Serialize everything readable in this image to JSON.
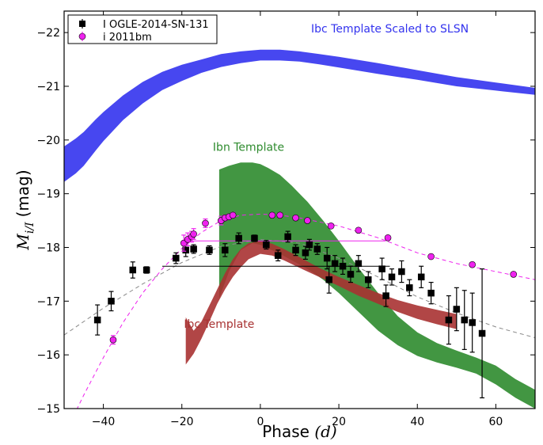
{
  "chart_data": {
    "type": "scatter",
    "title": "",
    "xlabel": "Phase",
    "xlabel_unit": "(d)",
    "ylabel": "M",
    "ylabel_sub": "i/I",
    "ylabel_unit": "(mag)",
    "xlim": [
      -50,
      70
    ],
    "ylim": [
      -15,
      -22.4
    ],
    "y_inverted": true,
    "x_ticks": [
      -40,
      -20,
      0,
      20,
      40,
      60
    ],
    "x_tick_labels": [
      "−40",
      "−20",
      "0",
      "20",
      "40",
      "60"
    ],
    "y_ticks": [
      -15,
      -16,
      -17,
      -18,
      -19,
      -20,
      -21,
      -22
    ],
    "y_tick_labels": [
      "−15",
      "−16",
      "−17",
      "−18",
      "−19",
      "−20",
      "−21",
      "−22"
    ],
    "grid": false,
    "legend_position": "top-left",
    "colors": {
      "ibc_slsn": "#3333ee",
      "ibn": "#2e8b2e",
      "ibc": "#a83232",
      "ogle": "#000000",
      "sn2011bm": "#ee22ee",
      "fit_black": "#888888"
    },
    "series": [
      {
        "name": "I OGLE-2014-SN-131",
        "marker": "square",
        "color": "#000000",
        "x": [
          -41.5,
          -38,
          -32.5,
          -29,
          -21.5,
          -19,
          -17,
          -13,
          -9,
          -5.5,
          -1.5,
          1.5,
          4.5,
          7,
          9,
          11.5,
          12.5,
          14.5,
          17,
          17.5,
          19,
          21,
          23,
          25,
          27.5,
          31,
          32,
          33.5,
          36,
          38,
          41,
          43.5,
          48,
          50,
          52,
          54,
          56.5
        ],
        "y": [
          -16.65,
          -17.0,
          -17.58,
          -17.58,
          -17.8,
          -17.95,
          -17.97,
          -17.95,
          -17.95,
          -18.17,
          -18.17,
          -18.05,
          -17.85,
          -18.2,
          -17.95,
          -17.9,
          -18.05,
          -17.97,
          -17.8,
          -17.4,
          -17.7,
          -17.65,
          -17.5,
          -17.7,
          -17.4,
          -17.6,
          -17.1,
          -17.45,
          -17.55,
          -17.25,
          -17.45,
          -17.15,
          -16.65,
          -16.85,
          -16.65,
          -16.6,
          -16.4
        ],
        "yerr": [
          0.28,
          0.18,
          0.15,
          0.06,
          0.1,
          0.12,
          0.08,
          0.08,
          0.12,
          0.1,
          0.06,
          0.08,
          0.1,
          0.1,
          0.1,
          0.12,
          0.1,
          0.1,
          0.2,
          0.25,
          0.15,
          0.15,
          0.15,
          0.15,
          0.15,
          0.2,
          0.2,
          0.15,
          0.2,
          0.15,
          0.2,
          0.2,
          0.45,
          0.4,
          0.55,
          0.55,
          1.2
        ]
      },
      {
        "name": "i 2011bm",
        "marker": "circle",
        "color": "#ee22ee",
        "x": [
          -37.5,
          -19.5,
          -18.5,
          -17.5,
          -17,
          -14,
          -10,
          -9,
          -8,
          -7,
          3,
          5,
          9,
          12,
          18,
          25,
          32.5,
          43.5,
          54,
          64.5
        ],
        "y": [
          -16.28,
          -18.08,
          -18.15,
          -18.2,
          -18.25,
          -18.45,
          -18.5,
          -18.55,
          -18.57,
          -18.6,
          -18.6,
          -18.6,
          -18.55,
          -18.5,
          -18.4,
          -18.32,
          -18.18,
          -17.83,
          -17.68,
          -17.5
        ],
        "yerr": [
          0.08,
          0.15,
          0.12,
          0.1,
          0.1,
          0.08,
          0.08,
          0.05,
          0.05,
          0.05,
          0.04,
          0.04,
          0.04,
          0.04,
          0.04,
          0.04,
          0.04,
          0.04,
          0.04,
          0.04
        ]
      }
    ],
    "bands": [
      {
        "label": "Ibc Template Scaled to SLSN",
        "color": "#3333ee",
        "x": [
          -50,
          -47,
          -45,
          -42,
          -40,
          -35,
          -30,
          -25,
          -20,
          -15,
          -10,
          -5,
          0,
          5,
          10,
          15,
          20,
          30,
          40,
          50,
          60,
          70
        ],
        "y_bright": [
          -19.88,
          -20.03,
          -20.15,
          -20.38,
          -20.52,
          -20.83,
          -21.08,
          -21.27,
          -21.4,
          -21.5,
          -21.6,
          -21.65,
          -21.68,
          -21.68,
          -21.65,
          -21.6,
          -21.55,
          -21.43,
          -21.3,
          -21.17,
          -21.07,
          -20.97
        ],
        "y_faint": [
          -19.22,
          -19.38,
          -19.52,
          -19.8,
          -19.98,
          -20.37,
          -20.68,
          -20.93,
          -21.1,
          -21.25,
          -21.36,
          -21.43,
          -21.48,
          -21.48,
          -21.46,
          -21.41,
          -21.35,
          -21.23,
          -21.12,
          -21.0,
          -20.92,
          -20.84
        ]
      },
      {
        "label": "Ibn Template",
        "color": "#2e8b2e",
        "x": [
          -10.5,
          -8,
          -5,
          -2,
          0,
          2,
          5,
          8,
          12,
          16,
          20,
          25,
          30,
          35,
          40,
          45,
          50,
          55,
          60,
          65,
          70
        ],
        "y_bright": [
          -19.45,
          -19.52,
          -19.58,
          -19.58,
          -19.55,
          -19.48,
          -19.35,
          -19.15,
          -18.85,
          -18.5,
          -18.12,
          -17.62,
          -17.15,
          -16.72,
          -16.42,
          -16.22,
          -16.08,
          -15.95,
          -15.8,
          -15.55,
          -15.35
        ],
        "y_faint": [
          -17.05,
          -17.55,
          -17.95,
          -18.08,
          -18.05,
          -17.98,
          -17.88,
          -17.76,
          -17.6,
          -17.4,
          -17.15,
          -16.8,
          -16.45,
          -16.18,
          -15.98,
          -15.86,
          -15.76,
          -15.65,
          -15.45,
          -15.2,
          -15.0
        ]
      },
      {
        "label": "Ibc Template",
        "color": "#a83232",
        "x": [
          -19,
          -17,
          -15,
          -13,
          -11,
          -9,
          -7,
          -5,
          -3,
          0,
          3,
          6,
          10,
          15,
          20,
          25,
          30,
          35,
          40,
          45,
          50
        ],
        "y_bright": [
          -16.7,
          -16.45,
          -16.62,
          -16.92,
          -17.22,
          -17.52,
          -17.78,
          -17.97,
          -18.08,
          -18.12,
          -18.07,
          -17.97,
          -17.82,
          -17.62,
          -17.45,
          -17.3,
          -17.15,
          -17.02,
          -16.92,
          -16.84,
          -16.76
        ],
        "y_faint": [
          -15.82,
          -16.02,
          -16.3,
          -16.62,
          -16.95,
          -17.22,
          -17.45,
          -17.63,
          -17.78,
          -17.88,
          -17.85,
          -17.76,
          -17.62,
          -17.45,
          -17.28,
          -17.1,
          -16.95,
          -16.8,
          -16.67,
          -16.57,
          -16.48
        ]
      }
    ],
    "fits": [
      {
        "color": "#888888",
        "style": "dashed",
        "x": [
          -50,
          -40,
          -30,
          -20,
          -10,
          0,
          10,
          20,
          30,
          40,
          50,
          60,
          70
        ],
        "y": [
          -16.37,
          -16.87,
          -17.32,
          -17.72,
          -18.02,
          -18.15,
          -18.08,
          -17.8,
          -17.45,
          -17.08,
          -16.78,
          -16.52,
          -16.32
        ]
      },
      {
        "color": "#ee22ee",
        "style": "dashed",
        "x": [
          -50,
          -45,
          -40,
          -35,
          -30,
          -25,
          -20,
          -15,
          -10,
          -5,
          0,
          5,
          10,
          20,
          30,
          40,
          50,
          60,
          70
        ],
        "y": [
          -14.5,
          -15.25,
          -15.95,
          -16.6,
          -17.15,
          -17.6,
          -17.98,
          -18.28,
          -18.5,
          -18.6,
          -18.62,
          -18.6,
          -18.55,
          -18.4,
          -18.18,
          -17.9,
          -17.7,
          -17.55,
          -17.4
        ]
      },
      {
        "color": "#000000",
        "style": "solid",
        "x": [
          -25,
          33
        ],
        "y": [
          -17.65,
          -17.65
        ]
      },
      {
        "color": "#ee22ee",
        "style": "solid",
        "x": [
          -18,
          32
        ],
        "y": [
          -18.12,
          -18.12
        ]
      }
    ],
    "annotations": [
      {
        "text": "Ibc Template Scaled to SLSN",
        "x": 33,
        "y": -22.0,
        "color": "#3333ee"
      },
      {
        "text": "Ibn Template",
        "x": -3,
        "y": -19.8,
        "color": "#2e8b2e"
      },
      {
        "text": "Ibc Template",
        "x": -10.5,
        "y": -16.5,
        "color": "#a83232"
      }
    ]
  }
}
